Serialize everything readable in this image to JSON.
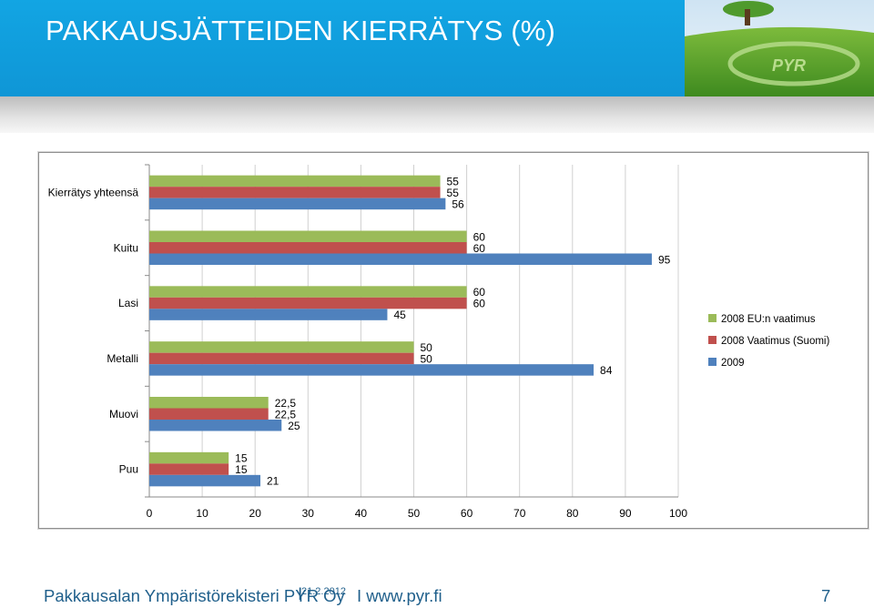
{
  "slide": {
    "title": "PAKKAUSJÄTTEIDEN KIERRÄTYS (%)"
  },
  "footer": {
    "organization": "Pakkausalan Ympäristörekisteri PYR Oy",
    "separator": "I",
    "date": "21.2.2012",
    "website": "I www.pyr.fi",
    "page_number": "7"
  },
  "banner_image": {
    "logo_text": "PYR",
    "colors": {
      "sky": "#dbe9f4",
      "grass": "#4f9f2a"
    }
  },
  "chart_data": {
    "type": "bar",
    "orientation": "horizontal",
    "categories": [
      "Kierrätys yhteensä",
      "Kuitu",
      "Lasi",
      "Metalli",
      "Muovi",
      "Puu"
    ],
    "category_labels": [
      "Kierrätys yhteensä",
      "Kuitu",
      "Lasi",
      "Metalli",
      "Muovi",
      "Puu"
    ],
    "series": [
      {
        "name": "2008 EU:n vaatimus",
        "color": "#9bbb59",
        "values": [
          55,
          60,
          60,
          50,
          22.5,
          15
        ],
        "labels": [
          "55",
          "60",
          "60",
          "50",
          "22,5",
          "15"
        ]
      },
      {
        "name": "2008 Vaatimus (Suomi)",
        "color": "#c0504d",
        "values": [
          55,
          60,
          60,
          50,
          22.5,
          15
        ],
        "labels": [
          "55",
          "60",
          "60",
          "50",
          "22,5",
          "15"
        ]
      },
      {
        "name": "2009",
        "color": "#4f81bd",
        "values": [
          56,
          95,
          45,
          84,
          25,
          21
        ],
        "labels": [
          "56",
          "95",
          "45",
          "84",
          "25",
          "21"
        ]
      }
    ],
    "xlim": [
      0,
      100
    ],
    "xticks": [
      "0",
      "10",
      "20",
      "30",
      "40",
      "50",
      "60",
      "70",
      "80",
      "90",
      "100"
    ],
    "grid": true,
    "legend_position": "right"
  }
}
